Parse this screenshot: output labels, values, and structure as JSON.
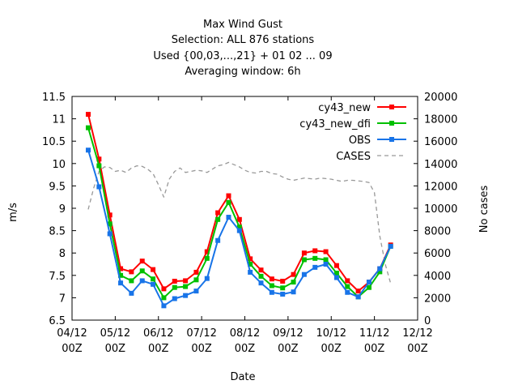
{
  "chart_data": {
    "type": "line",
    "title": [
      "Max Wind Gust",
      "Selection: ALL    876 stations",
      "Used {00,03,...,21} + 01 02 ... 09",
      "Averaging window:  6h"
    ],
    "xlabel": "Date",
    "ylabel": "m/s",
    "y2label": "No cases",
    "x_ticks": [
      {
        "top": "04/12",
        "bottom": "00Z"
      },
      {
        "top": "05/12",
        "bottom": "00Z"
      },
      {
        "top": "06/12",
        "bottom": "00Z"
      },
      {
        "top": "07/12",
        "bottom": "00Z"
      },
      {
        "top": "08/12",
        "bottom": "00Z"
      },
      {
        "top": "09/12",
        "bottom": "00Z"
      },
      {
        "top": "10/12",
        "bottom": "00Z"
      },
      {
        "top": "11/12",
        "bottom": "00Z"
      },
      {
        "top": "12/12",
        "bottom": "00Z"
      }
    ],
    "y_ticks": [
      "6.5",
      "7",
      "7.5",
      "8",
      "8.5",
      "9",
      "9.5",
      "10",
      "10.5",
      "11",
      "11.5"
    ],
    "y2_ticks": [
      "0",
      "2000",
      "4000",
      "6000",
      "8000",
      "10000",
      "12000",
      "14000",
      "16000",
      "18000",
      "20000"
    ],
    "xlim_hours": [
      0,
      192
    ],
    "ylim": [
      6.5,
      11.5
    ],
    "y2lim": [
      0,
      20000
    ],
    "legend_position": "top-right",
    "series": [
      {
        "name": "cy43_new",
        "color": "#ff0000",
        "marker": "square",
        "x": [
          9,
          15,
          21,
          27,
          33,
          39,
          45,
          51,
          57,
          63,
          69,
          75,
          81,
          87,
          93,
          99,
          105,
          111,
          117,
          123,
          129,
          135,
          141,
          147,
          153,
          159,
          165,
          171,
          177
        ],
        "values": [
          11.1,
          10.1,
          8.85,
          7.65,
          7.58,
          7.82,
          7.63,
          7.2,
          7.37,
          7.38,
          7.57,
          8.03,
          8.9,
          9.28,
          8.75,
          7.87,
          7.62,
          7.42,
          7.37,
          7.52,
          8.0,
          8.05,
          8.03,
          7.72,
          7.38,
          7.15,
          7.35,
          7.65,
          8.18
        ]
      },
      {
        "name": "cy43_new_dfi",
        "color": "#00c000",
        "marker": "square",
        "x": [
          9,
          15,
          21,
          27,
          33,
          39,
          45,
          51,
          57,
          63,
          69,
          75,
          81,
          87,
          93,
          99,
          105,
          111,
          117,
          123,
          129,
          135,
          141,
          147,
          153,
          159,
          165,
          171,
          177
        ],
        "values": [
          10.8,
          9.95,
          8.65,
          7.5,
          7.38,
          7.6,
          7.42,
          7.0,
          7.23,
          7.25,
          7.4,
          7.88,
          8.75,
          9.13,
          8.58,
          7.75,
          7.48,
          7.27,
          7.22,
          7.35,
          7.85,
          7.88,
          7.85,
          7.55,
          7.25,
          7.02,
          7.23,
          7.58,
          8.15
        ]
      },
      {
        "name": "OBS",
        "color": "#1874e8",
        "marker": "square",
        "x": [
          9,
          15,
          21,
          27,
          33,
          39,
          45,
          51,
          57,
          63,
          69,
          75,
          81,
          87,
          93,
          99,
          105,
          111,
          117,
          123,
          129,
          135,
          141,
          147,
          153,
          159,
          165,
          171,
          177
        ],
        "values": [
          10.3,
          9.48,
          8.43,
          7.33,
          7.1,
          7.38,
          7.3,
          6.82,
          6.98,
          7.05,
          7.15,
          7.43,
          8.28,
          8.8,
          8.5,
          7.57,
          7.33,
          7.12,
          7.08,
          7.13,
          7.52,
          7.68,
          7.75,
          7.45,
          7.12,
          7.02,
          7.35,
          7.65,
          8.15
        ]
      },
      {
        "name": "CASES",
        "color": "#999999",
        "axis": "y2",
        "dashed": true,
        "x": [
          9,
          12,
          15,
          18,
          21,
          24,
          27,
          30,
          33,
          36,
          39,
          42,
          45,
          48,
          51,
          54,
          57,
          60,
          63,
          66,
          69,
          72,
          75,
          78,
          81,
          84,
          87,
          90,
          93,
          96,
          99,
          102,
          105,
          108,
          111,
          114,
          117,
          120,
          123,
          126,
          129,
          132,
          135,
          138,
          141,
          144,
          147,
          150,
          153,
          156,
          159,
          162,
          165,
          168,
          171,
          174,
          177
        ],
        "values": [
          9900,
          11800,
          13300,
          13700,
          13650,
          13300,
          13400,
          13200,
          13600,
          13800,
          13750,
          13500,
          13100,
          12100,
          11000,
          12600,
          13300,
          13600,
          13200,
          13300,
          13400,
          13350,
          13200,
          13500,
          13800,
          13900,
          14100,
          13900,
          13700,
          13400,
          13200,
          13150,
          13300,
          13300,
          13100,
          13050,
          12800,
          12600,
          12500,
          12600,
          12700,
          12650,
          12600,
          12700,
          12650,
          12600,
          12500,
          12400,
          12500,
          12500,
          12450,
          12400,
          12300,
          11400,
          7500,
          5000,
          3300
        ]
      }
    ]
  }
}
